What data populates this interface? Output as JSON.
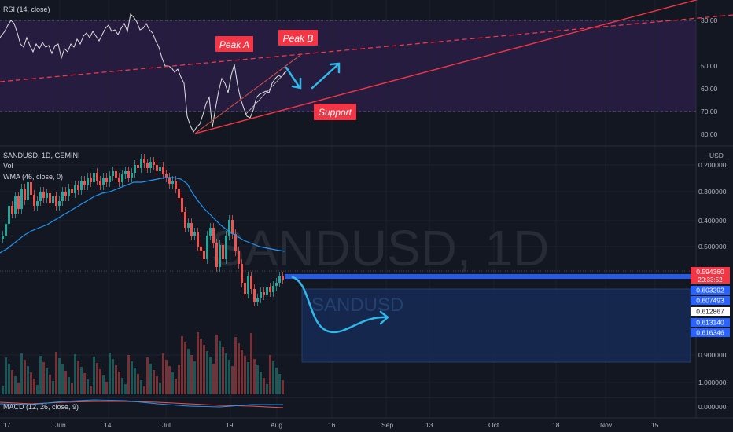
{
  "colors": {
    "background": "#131722",
    "grid": "#1e222d",
    "up": "#26a69a",
    "down": "#ef5350",
    "rsi_band": "#2a1d45",
    "wma": "#2196f3",
    "annotation": "#f23645",
    "arrow": "#2fb8e8",
    "projection": "#1f4e8c"
  },
  "rsi": {
    "legend": "RSI (14, close)",
    "levels": [
      "30.00",
      "50.00",
      "60.00",
      "70.00",
      "80.00"
    ]
  },
  "main": {
    "legend": {
      "symbol": "SANDUSD, 1D, GEMINI",
      "vol": "Vol",
      "wma": "WMA (46, close, 0)"
    },
    "watermark": "SANDUSD, 1D",
    "sub_watermark": "SANDUSD",
    "currency": "USD",
    "price_levels": [
      "0.200000",
      "0.300000",
      "0.400000",
      "0.500000",
      "0.900000",
      "1.000000"
    ]
  },
  "macd": {
    "legend": "MACD (12, 26, close, 9)",
    "level": "0.000000"
  },
  "annotations": {
    "peak_a": "Peak A",
    "peak_b": "Peak B",
    "support": "Support"
  },
  "price_tags": [
    {
      "value": "0.594360",
      "sub": "20:33:52",
      "color": "#f23645"
    },
    {
      "value": "0.603292",
      "color": "#2962ff"
    },
    {
      "value": "0.607493",
      "color": "#2962ff"
    },
    {
      "value": "0.612867",
      "color": "#ffffff"
    },
    {
      "value": "0.613140",
      "color": "#2962ff"
    },
    {
      "value": "0.616346",
      "color": "#2962ff"
    }
  ],
  "time_axis": [
    "17",
    "Jun",
    "14",
    "Jul",
    "19",
    "Aug",
    "16",
    "Sep",
    "13",
    "Oct",
    "18",
    "Nov",
    "15"
  ]
}
